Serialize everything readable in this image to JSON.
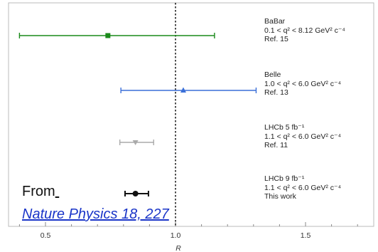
{
  "chart_data": {
    "type": "scatter",
    "orientation": "horizontal-error-bars",
    "x_ticks": [
      "0.5",
      "1.0",
      "1.5"
    ],
    "x_axis_label": "R",
    "xlim": [
      0.4,
      1.7
    ],
    "reference_line_x": 1.0,
    "series": [
      {
        "name": "BaBar",
        "range_text": "0.1 < q² < 8.12 GeV² c⁻⁴",
        "ref_text": "Ref. 15",
        "value": 0.74,
        "err_low": 0.34,
        "err_high": 0.41,
        "color": "#1a8a1a",
        "marker": "square"
      },
      {
        "name": "Belle",
        "range_text": "1.0 < q² < 6.0 GeV² c⁻⁴",
        "ref_text": "Ref. 13",
        "value": 1.03,
        "err_low": 0.24,
        "err_high": 0.28,
        "color": "#3a6fd8",
        "marker": "triangle"
      },
      {
        "name": "LHCb 5 fb⁻¹",
        "range_text": "1.1 < q² < 6.0 GeV² c⁻⁴",
        "ref_text": "Ref. 11",
        "value": 0.846,
        "err_low": 0.06,
        "err_high": 0.07,
        "color": "#aaaaaa",
        "marker": "triangle-down"
      },
      {
        "name": "LHCb 9 fb⁻¹",
        "range_text": "1.1 < q² < 6.0 GeV² c⁻⁴",
        "ref_text": "This work",
        "value": 0.846,
        "err_low": 0.04,
        "err_high": 0.05,
        "color": "#111111",
        "marker": "circle"
      }
    ]
  },
  "credit": {
    "prefix": "From",
    "source": "Nature Physics 18, 227"
  }
}
